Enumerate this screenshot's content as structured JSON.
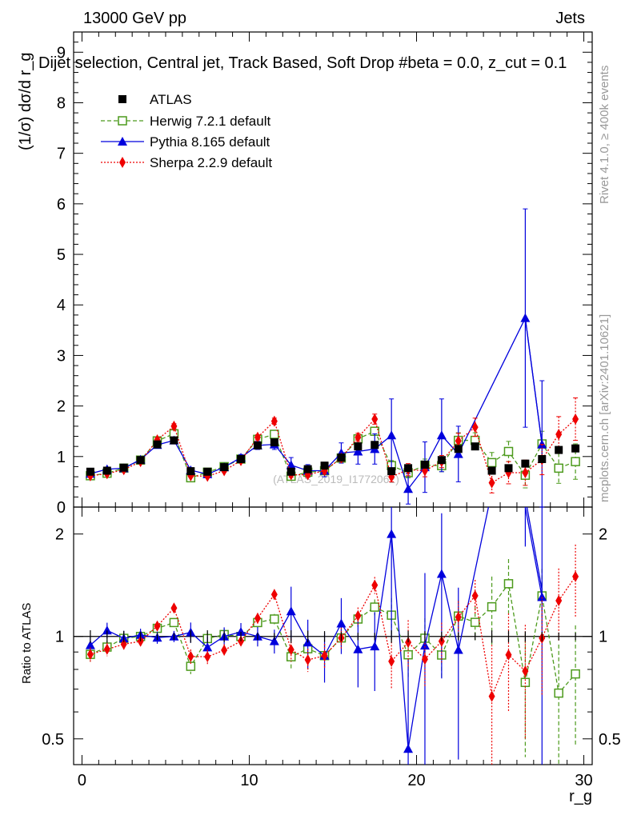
{
  "header": {
    "energy_label": "13000 GeV pp",
    "category_label": "Jets",
    "plot_title": "Dijet selection, Central jet, Track Based, Soft Drop #beta = 0.0, z_cut = 0.1",
    "watermark": "(ATLAS_2019_I1772062)",
    "side_label_rivet": "Rivet 4.1.0, ≥ 400k events",
    "side_label_mcplots": "mcplots.cern.ch [arXiv:2401.10621]"
  },
  "chart_data": {
    "type": "scatter",
    "title": "Dijet selection, Central jet, Track Based, Soft Drop #beta = 0.0, z_cut = 0.1",
    "xlabel": "r_g",
    "ylabel": "(1/σ) dσ/d r_g",
    "ratio_ylabel": "Ratio to ATLAS",
    "xlim": [
      -0.5,
      30.5
    ],
    "ylim": [
      0,
      9.4
    ],
    "ratio_ylim": [
      0.42,
      2.4
    ],
    "x_ticks": [
      0,
      10,
      20,
      30
    ],
    "y_ticks": [
      0,
      1,
      2,
      3,
      4,
      5,
      6,
      7,
      8,
      9
    ],
    "ratio_ticks": [
      0.5,
      1,
      2
    ],
    "x": [
      0.5,
      1.5,
      2.5,
      3.5,
      4.5,
      5.5,
      6.5,
      7.5,
      8.5,
      9.5,
      10.5,
      11.5,
      12.5,
      13.5,
      14.5,
      15.5,
      16.5,
      17.5,
      18.5,
      19.5,
      20.5,
      21.5,
      22.5,
      23.5,
      24.5,
      25.5,
      26.5,
      27.5,
      28.5,
      29.5
    ],
    "legend": [
      "ATLAS",
      "Herwig 7.2.1 default",
      "Pythia 8.165 default",
      "Sherpa 2.2.9 default"
    ],
    "series": [
      {
        "name": "ATLAS",
        "color": "#000000",
        "marker": "square",
        "values": [
          0.7,
          0.72,
          0.78,
          0.93,
          1.24,
          1.32,
          0.71,
          0.7,
          0.79,
          0.95,
          1.22,
          1.28,
          0.7,
          0.75,
          0.82,
          0.98,
          1.2,
          1.23,
          0.71,
          0.77,
          0.84,
          0.93,
          1.15,
          1.2,
          0.72,
          0.77,
          0.86,
          0.95,
          1.13,
          1.16
        ]
      },
      {
        "name": "Herwig 7.2.1 default",
        "color": "#4c9a1c",
        "marker": "open-square",
        "values": [
          0.62,
          0.67,
          0.77,
          0.93,
          1.31,
          1.45,
          0.58,
          0.69,
          0.8,
          0.95,
          1.34,
          1.44,
          0.61,
          0.69,
          0.72,
          0.97,
          1.35,
          1.5,
          0.82,
          0.68,
          0.83,
          0.82,
          1.32,
          1.32,
          0.88,
          1.1,
          0.63,
          1.25,
          0.77,
          0.9
        ],
        "errors": [
          0.03,
          0.03,
          0.03,
          0.03,
          0.04,
          0.04,
          0.03,
          0.03,
          0.03,
          0.04,
          0.05,
          0.05,
          0.05,
          0.05,
          0.06,
          0.06,
          0.07,
          0.08,
          0.1,
          0.1,
          0.12,
          0.12,
          0.15,
          0.15,
          0.2,
          0.2,
          0.25,
          0.25,
          0.3,
          0.35
        ]
      },
      {
        "name": "Pythia 8.165 default",
        "color": "#0000dd",
        "marker": "triangle",
        "values": [
          0.66,
          0.75,
          0.77,
          0.94,
          1.23,
          1.32,
          0.73,
          0.65,
          0.79,
          0.98,
          1.22,
          1.24,
          0.83,
          0.72,
          0.72,
          1.07,
          1.1,
          1.15,
          1.42,
          0.36,
          0.79,
          1.42,
          1.05,
          null,
          null,
          null,
          3.74,
          1.24,
          null,
          null
        ],
        "errors": [
          0.04,
          0.04,
          0.04,
          0.04,
          0.05,
          0.05,
          0.05,
          0.05,
          0.05,
          0.06,
          0.08,
          0.1,
          0.15,
          0.12,
          0.12,
          0.2,
          0.25,
          0.3,
          0.72,
          0.3,
          0.5,
          0.72,
          0.55,
          null,
          null,
          null,
          2.16,
          1.26,
          null,
          null
        ]
      },
      {
        "name": "Sherpa 2.2.9 default",
        "color": "#ee0000",
        "marker": "diamond",
        "values": [
          0.62,
          0.66,
          0.74,
          0.9,
          1.33,
          1.6,
          0.62,
          0.61,
          0.72,
          0.92,
          1.38,
          1.7,
          0.64,
          0.64,
          0.72,
          0.97,
          1.38,
          1.74,
          0.6,
          0.74,
          0.72,
          0.9,
          1.31,
          1.58,
          0.48,
          0.68,
          0.68,
          0.94,
          1.44,
          1.74
        ],
        "errors": [
          0.03,
          0.03,
          0.03,
          0.03,
          0.04,
          0.05,
          0.03,
          0.03,
          0.03,
          0.04,
          0.05,
          0.06,
          0.05,
          0.05,
          0.06,
          0.07,
          0.08,
          0.1,
          0.1,
          0.12,
          0.12,
          0.12,
          0.15,
          0.18,
          0.2,
          0.22,
          0.25,
          0.3,
          0.35,
          0.42
        ]
      }
    ]
  }
}
